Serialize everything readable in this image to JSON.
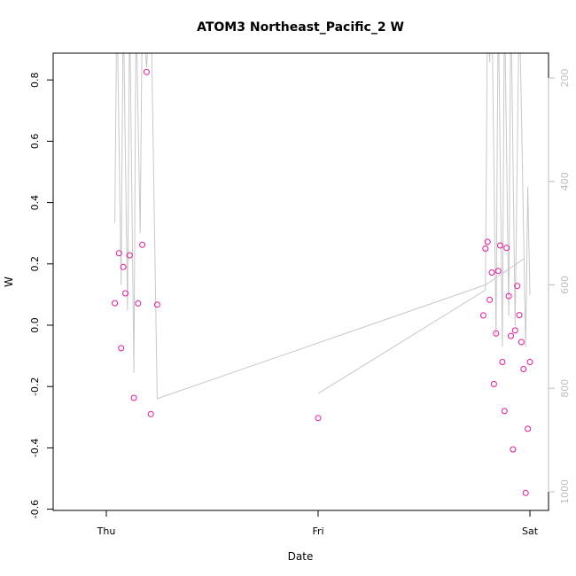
{
  "chart_data": {
    "type": "scatter",
    "title": "ATOM3 Northeast_Pacific_2 W",
    "xlabel": "Date",
    "ylabel": "W",
    "x_ticks": [
      "Thu",
      "Fri",
      "Sat"
    ],
    "ylim": [
      -0.6,
      0.88
    ],
    "y_ticks": [
      "-0.6",
      "-0.4",
      "-0.2",
      "0.0",
      "0.2",
      "0.4",
      "0.6",
      "0.8"
    ],
    "y2_ticks": [
      "200",
      "400",
      "600",
      "800",
      "1000"
    ],
    "y2_ticks_values": [
      200,
      400,
      600,
      800,
      1000
    ],
    "point_color": "#e8189a",
    "line_color": "#c8c8c8",
    "points": [
      {
        "x": 0.04,
        "y": 0.072
      },
      {
        "x": 0.06,
        "y": 0.235
      },
      {
        "x": 0.07,
        "y": -0.075
      },
      {
        "x": 0.08,
        "y": 0.19
      },
      {
        "x": 0.09,
        "y": 0.104
      },
      {
        "x": 0.11,
        "y": 0.228
      },
      {
        "x": 0.13,
        "y": -0.237
      },
      {
        "x": 0.15,
        "y": 0.071
      },
      {
        "x": 0.17,
        "y": 0.262
      },
      {
        "x": 0.19,
        "y": 0.826
      },
      {
        "x": 0.21,
        "y": -0.29
      },
      {
        "x": 0.24,
        "y": 0.067
      },
      {
        "x": 1.0,
        "y": -0.303
      },
      {
        "x": 1.78,
        "y": 0.032
      },
      {
        "x": 1.79,
        "y": 0.25
      },
      {
        "x": 1.8,
        "y": 0.272
      },
      {
        "x": 1.81,
        "y": 0.083
      },
      {
        "x": 1.82,
        "y": 0.172
      },
      {
        "x": 1.83,
        "y": -0.192
      },
      {
        "x": 1.84,
        "y": -0.027
      },
      {
        "x": 1.85,
        "y": 0.177
      },
      {
        "x": 1.86,
        "y": 0.26
      },
      {
        "x": 1.87,
        "y": -0.12
      },
      {
        "x": 1.88,
        "y": -0.28
      },
      {
        "x": 1.89,
        "y": 0.252
      },
      {
        "x": 1.9,
        "y": 0.095
      },
      {
        "x": 1.91,
        "y": -0.035
      },
      {
        "x": 1.92,
        "y": -0.405
      },
      {
        "x": 1.93,
        "y": -0.017
      },
      {
        "x": 1.94,
        "y": 0.128
      },
      {
        "x": 1.95,
        "y": 0.033
      },
      {
        "x": 1.96,
        "y": -0.055
      },
      {
        "x": 1.97,
        "y": -0.143
      },
      {
        "x": 1.98,
        "y": -0.547
      },
      {
        "x": 1.99,
        "y": -0.338
      },
      {
        "x": 2.0,
        "y": -0.12
      }
    ],
    "depth_segments": [
      [
        [
          0.04,
          480
        ],
        [
          0.05,
          40
        ],
        [
          0.07,
          600
        ],
        [
          0.08,
          50
        ],
        [
          0.1,
          650
        ],
        [
          0.11,
          60
        ],
        [
          0.13,
          770
        ],
        [
          0.14,
          60
        ],
        [
          0.16,
          500
        ],
        [
          0.17,
          50
        ],
        [
          0.19,
          180
        ],
        [
          0.21,
          40
        ],
        [
          0.24,
          820
        ],
        [
          1.79,
          600
        ],
        [
          1.97,
          550
        ]
      ],
      [
        [
          1.0,
          810
        ],
        [
          1.79,
          610
        ],
        [
          1.8,
          50
        ],
        [
          1.81,
          170
        ],
        [
          1.82,
          50
        ],
        [
          1.84,
          700
        ],
        [
          1.85,
          40
        ],
        [
          1.87,
          720
        ],
        [
          1.88,
          40
        ],
        [
          1.9,
          660
        ],
        [
          1.91,
          40
        ],
        [
          1.93,
          680
        ],
        [
          1.95,
          40
        ],
        [
          1.98,
          720
        ],
        [
          1.99,
          410
        ],
        [
          2.0,
          620
        ]
      ]
    ]
  }
}
